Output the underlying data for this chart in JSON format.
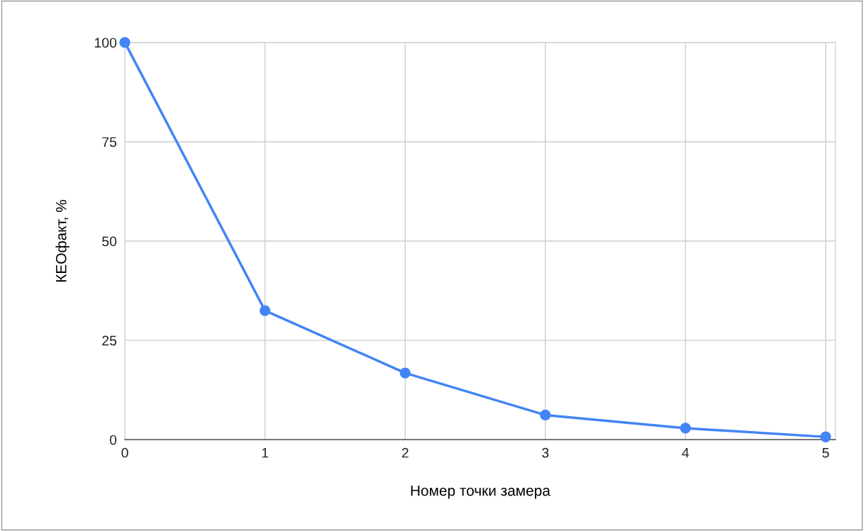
{
  "chart_data": {
    "type": "line",
    "xlabel": "Номер точки замера",
    "ylabel": "КЕОфакт, %",
    "x": [
      0,
      1,
      2,
      3,
      4,
      5
    ],
    "series": [
      {
        "color": "#4285f4",
        "values": [
          100,
          32.5,
          16.8,
          6.2,
          2.9,
          0.7
        ]
      }
    ],
    "xlim": [
      0,
      5.07
    ],
    "xticks": [
      0,
      1,
      2,
      3,
      4,
      5
    ],
    "ylim": [
      0,
      100
    ],
    "yticks": [
      0,
      25,
      50,
      75,
      100
    ],
    "grid": true,
    "marker": "circle",
    "line_style": "solid",
    "legend": false
  }
}
